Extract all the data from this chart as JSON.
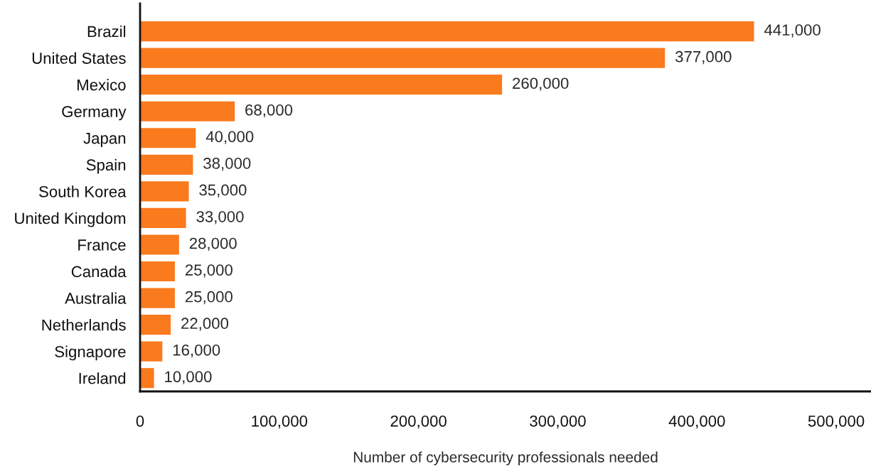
{
  "chart_data": {
    "type": "bar",
    "orientation": "horizontal",
    "xlabel": "Number of cybersecurity professionals needed",
    "categories": [
      "Brazil",
      "United States",
      "Mexico",
      "Germany",
      "Japan",
      "Spain",
      "South Korea",
      "United Kingdom",
      "France",
      "Canada",
      "Australia",
      "Netherlands",
      "Signapore",
      "Ireland"
    ],
    "values": [
      441000,
      377000,
      260000,
      68000,
      40000,
      38000,
      35000,
      33000,
      28000,
      25000,
      25000,
      22000,
      16000,
      10000
    ],
    "value_labels": [
      "441,000",
      "377,000",
      "260,000",
      "68,000",
      "40,000",
      "38,000",
      "35,000",
      "33,000",
      "28,000",
      "25,000",
      "25,000",
      "22,000",
      "16,000",
      "10,000"
    ],
    "color": "#fa7a1e",
    "xlim": [
      0,
      525000
    ],
    "xticks": [
      0,
      {
        "value": 100000,
        "label": "100,000"
      },
      {
        "value": 200000,
        "label": "200,000"
      },
      {
        "value": 300000,
        "label": "300,000"
      },
      {
        "value": 400000,
        "label": "400,000"
      },
      {
        "value": 500000,
        "label": "500,000"
      }
    ],
    "grid": false,
    "legend": false
  }
}
